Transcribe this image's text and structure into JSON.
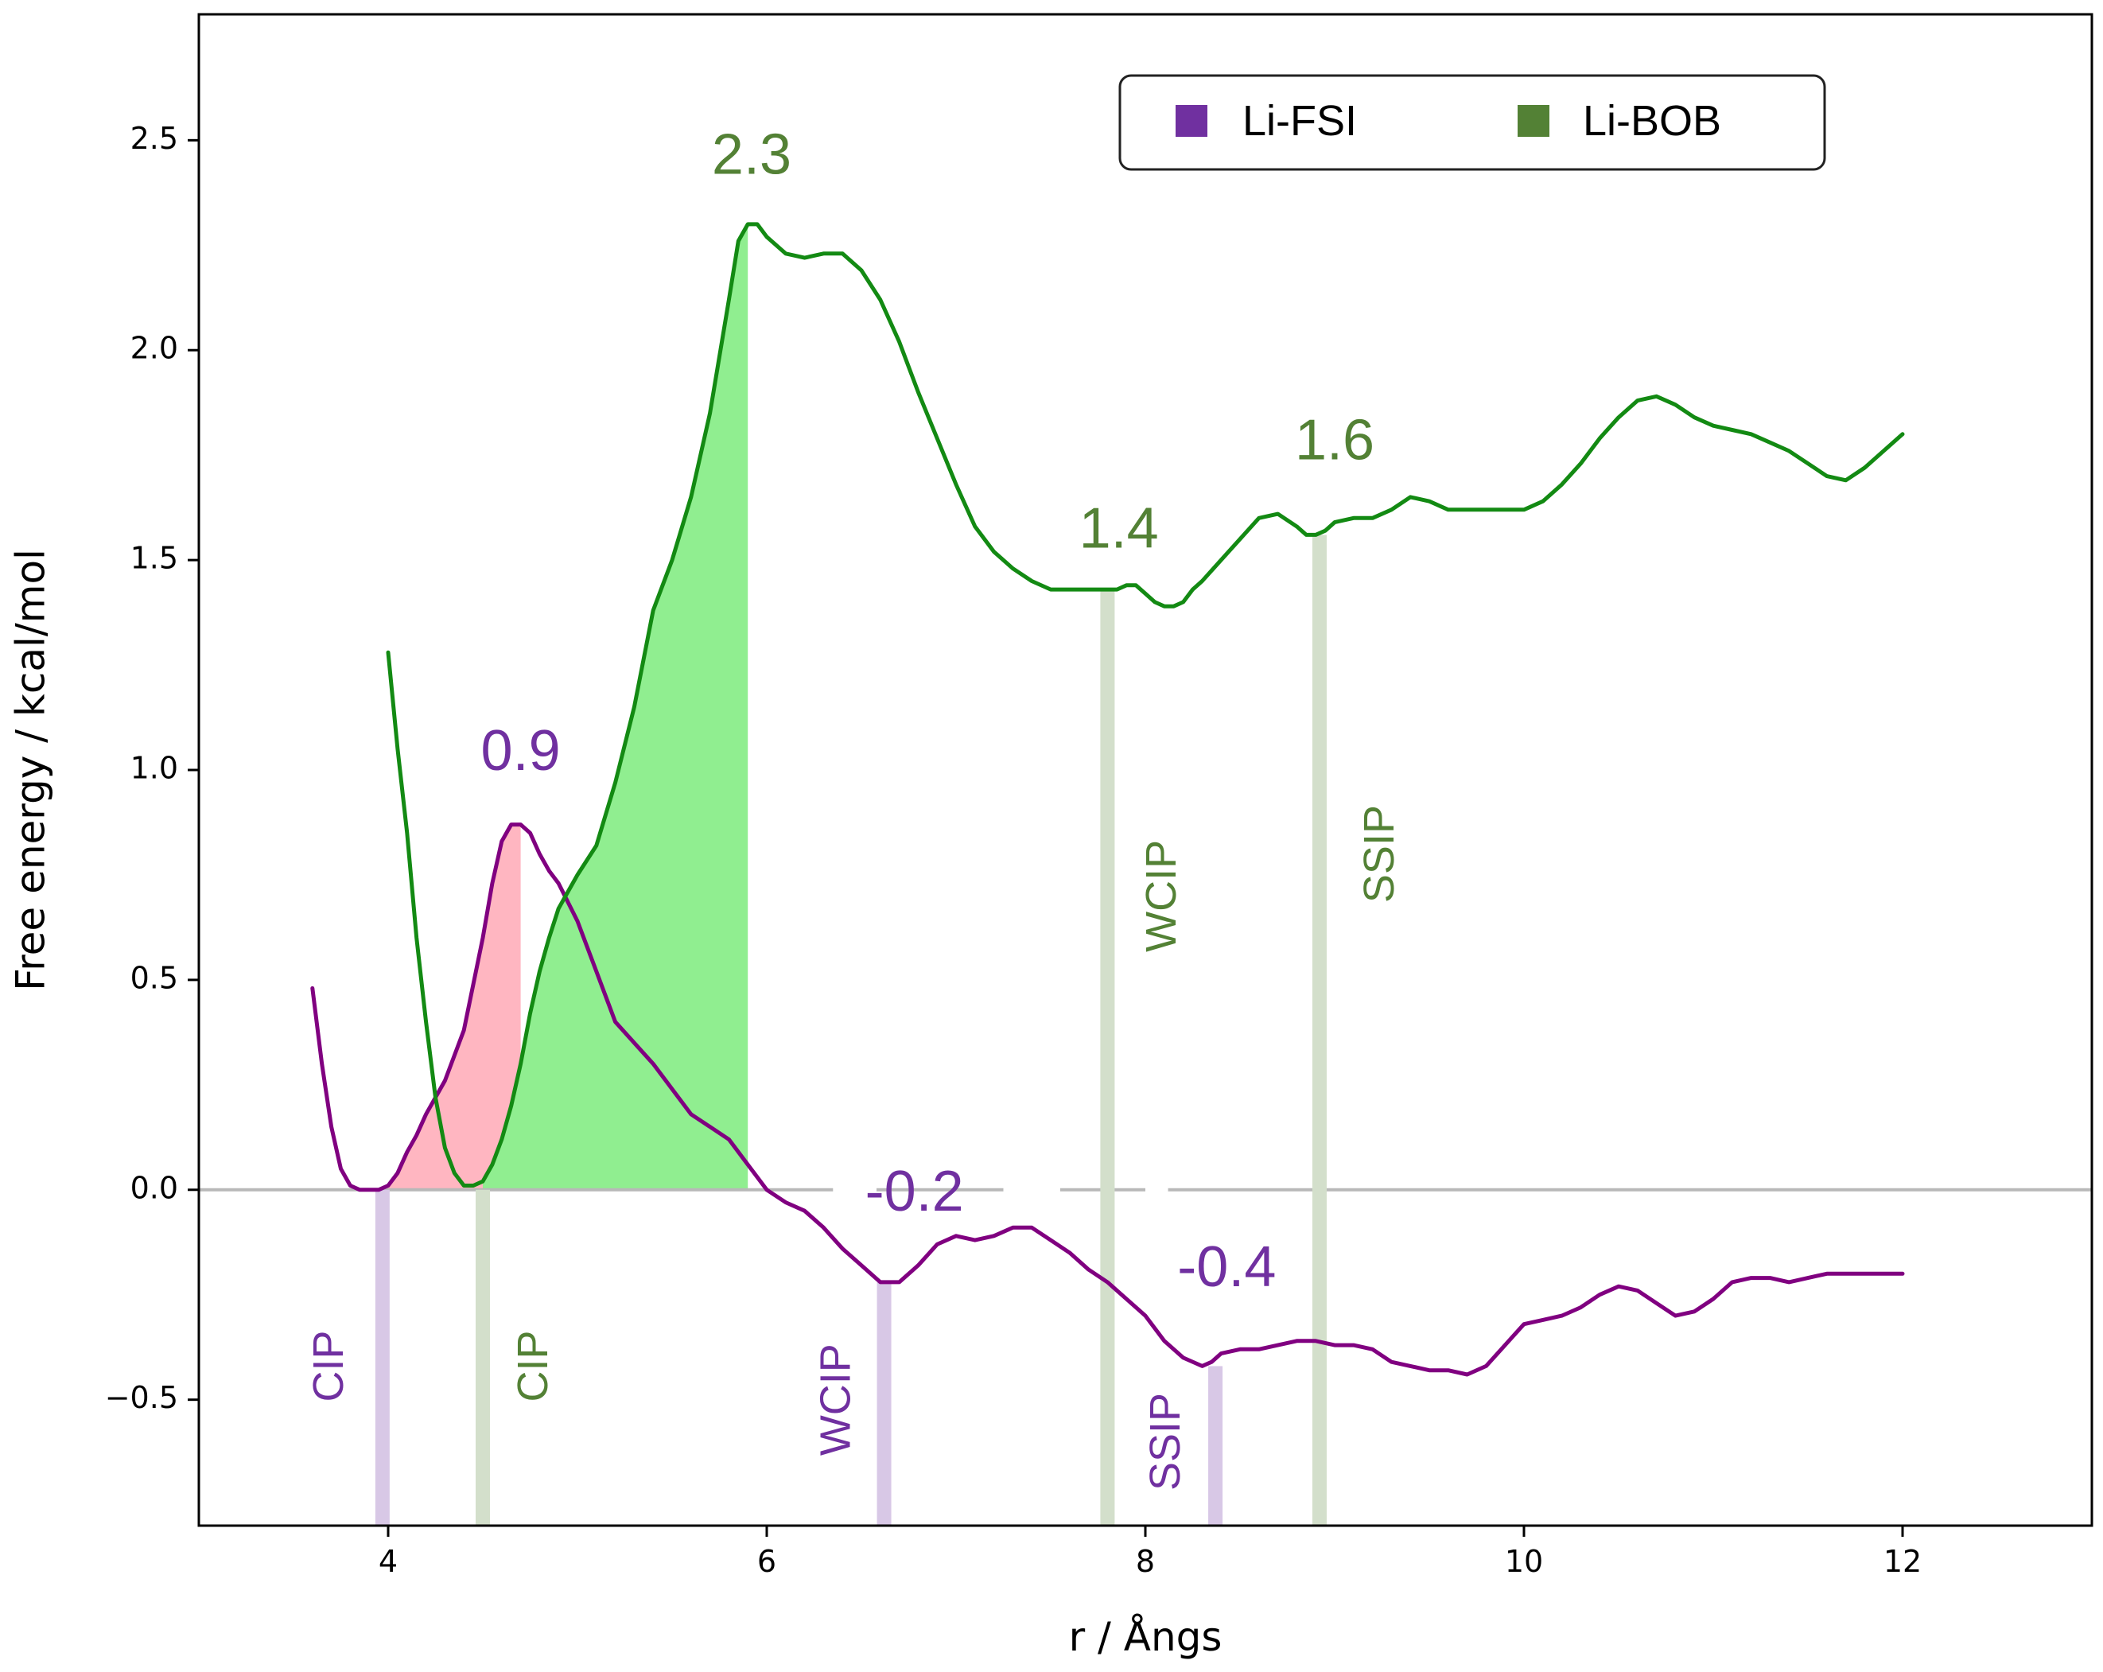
{
  "chart_data": {
    "type": "line",
    "xlabel": "r / Ångs",
    "ylabel": "Free energy / kcal/mol",
    "xlim": [
      3.0,
      13.0
    ],
    "ylim": [
      -0.8,
      2.8
    ],
    "x_ticks": [
      "4",
      "6",
      "8",
      "10",
      "12"
    ],
    "y_ticks": [
      "−0.5",
      "0.0",
      "0.5",
      "1.0",
      "1.5",
      "2.0",
      "2.5"
    ],
    "grid": false,
    "legend": "top-right",
    "colors": {
      "Li-FSI": "#800080",
      "Li-BOB": "#138a13",
      "fsi_label": "#7030a0",
      "bob_label": "#538135",
      "fsi_fill": "#ffb6c1",
      "bob_fill": "#90ee90",
      "fsi_marker": "#d8c8e6",
      "bob_marker": "#d3dfcb",
      "zero_line": "#b8b8b8"
    },
    "series": [
      {
        "name": "Li-FSI",
        "x": [
          3.6,
          3.65,
          3.7,
          3.75,
          3.8,
          3.85,
          3.9,
          3.95,
          4.0,
          4.05,
          4.1,
          4.15,
          4.2,
          4.3,
          4.4,
          4.5,
          4.55,
          4.6,
          4.65,
          4.7,
          4.75,
          4.8,
          4.85,
          4.9,
          5.0,
          5.1,
          5.2,
          5.3,
          5.4,
          5.5,
          5.6,
          5.7,
          5.8,
          5.9,
          6.0,
          6.1,
          6.2,
          6.3,
          6.4,
          6.5,
          6.6,
          6.7,
          6.8,
          6.9,
          7.0,
          7.1,
          7.2,
          7.3,
          7.4,
          7.5,
          7.6,
          7.7,
          7.8,
          7.9,
          8.0,
          8.1,
          8.2,
          8.3,
          8.35,
          8.4,
          8.5,
          8.6,
          8.7,
          8.8,
          8.9,
          9.0,
          9.1,
          9.2,
          9.3,
          9.4,
          9.5,
          9.6,
          9.7,
          9.8,
          9.9,
          10.0,
          10.1,
          10.2,
          10.3,
          10.4,
          10.5,
          10.6,
          10.7,
          10.8,
          10.9,
          11.0,
          11.1,
          11.2,
          11.3,
          11.4,
          11.5,
          11.6,
          11.7,
          11.8,
          11.9,
          12.0
        ],
        "y": [
          0.48,
          0.3,
          0.15,
          0.05,
          0.01,
          0.0,
          0.0,
          0.0,
          0.01,
          0.04,
          0.09,
          0.13,
          0.18,
          0.26,
          0.38,
          0.6,
          0.73,
          0.83,
          0.87,
          0.87,
          0.85,
          0.8,
          0.76,
          0.73,
          0.64,
          0.52,
          0.4,
          0.35,
          0.3,
          0.24,
          0.18,
          0.15,
          0.12,
          0.06,
          0.0,
          -0.03,
          -0.05,
          -0.09,
          -0.14,
          -0.18,
          -0.22,
          -0.22,
          -0.18,
          -0.13,
          -0.11,
          -0.12,
          -0.11,
          -0.09,
          -0.09,
          -0.12,
          -0.15,
          -0.19,
          -0.22,
          -0.26,
          -0.3,
          -0.36,
          -0.4,
          -0.42,
          -0.41,
          -0.39,
          -0.38,
          -0.38,
          -0.37,
          -0.36,
          -0.36,
          -0.37,
          -0.37,
          -0.38,
          -0.41,
          -0.42,
          -0.43,
          -0.43,
          -0.44,
          -0.42,
          -0.37,
          -0.32,
          -0.31,
          -0.3,
          -0.28,
          -0.25,
          -0.23,
          -0.24,
          -0.27,
          -0.3,
          -0.29,
          -0.26,
          -0.22,
          -0.21,
          -0.21,
          -0.22,
          -0.21,
          -0.2,
          -0.2,
          -0.2,
          -0.2,
          -0.2
        ]
      },
      {
        "name": "Li-BOB",
        "x": [
          4.0,
          4.05,
          4.1,
          4.15,
          4.2,
          4.25,
          4.3,
          4.35,
          4.4,
          4.45,
          4.5,
          4.55,
          4.6,
          4.65,
          4.7,
          4.75,
          4.8,
          4.85,
          4.9,
          5.0,
          5.1,
          5.2,
          5.3,
          5.4,
          5.5,
          5.6,
          5.7,
          5.8,
          5.85,
          5.9,
          5.95,
          6.0,
          6.1,
          6.2,
          6.3,
          6.4,
          6.5,
          6.6,
          6.7,
          6.8,
          6.9,
          7.0,
          7.1,
          7.2,
          7.3,
          7.4,
          7.5,
          7.6,
          7.7,
          7.75,
          7.8,
          7.85,
          7.9,
          7.95,
          8.0,
          8.05,
          8.1,
          8.15,
          8.2,
          8.25,
          8.3,
          8.4,
          8.5,
          8.6,
          8.7,
          8.8,
          8.85,
          8.9,
          8.95,
          9.0,
          9.1,
          9.2,
          9.3,
          9.4,
          9.5,
          9.6,
          9.7,
          9.8,
          9.9,
          10.0,
          10.1,
          10.2,
          10.3,
          10.4,
          10.5,
          10.6,
          10.7,
          10.8,
          10.9,
          11.0,
          11.1,
          11.2,
          11.3,
          11.4,
          11.5,
          11.6,
          11.7,
          11.8,
          11.9,
          12.0
        ],
        "y": [
          1.28,
          1.05,
          0.85,
          0.6,
          0.4,
          0.22,
          0.1,
          0.04,
          0.01,
          0.01,
          0.02,
          0.06,
          0.12,
          0.2,
          0.3,
          0.42,
          0.52,
          0.6,
          0.67,
          0.75,
          0.82,
          0.97,
          1.15,
          1.38,
          1.5,
          1.65,
          1.85,
          2.12,
          2.26,
          2.3,
          2.3,
          2.27,
          2.23,
          2.22,
          2.23,
          2.23,
          2.19,
          2.12,
          2.02,
          1.9,
          1.79,
          1.68,
          1.58,
          1.52,
          1.48,
          1.45,
          1.43,
          1.43,
          1.43,
          1.43,
          1.43,
          1.43,
          1.44,
          1.44,
          1.42,
          1.4,
          1.39,
          1.39,
          1.4,
          1.43,
          1.45,
          1.5,
          1.55,
          1.6,
          1.61,
          1.58,
          1.56,
          1.56,
          1.57,
          1.59,
          1.6,
          1.6,
          1.62,
          1.65,
          1.64,
          1.62,
          1.62,
          1.62,
          1.62,
          1.62,
          1.64,
          1.68,
          1.73,
          1.79,
          1.84,
          1.88,
          1.89,
          1.87,
          1.84,
          1.82,
          1.81,
          1.8,
          1.78,
          1.76,
          1.73,
          1.7,
          1.69,
          1.72,
          1.76,
          1.8
        ]
      }
    ],
    "shaded_regions": [
      {
        "series": "Li-FSI",
        "x_from": 3.95,
        "x_to": 4.72,
        "color": "#ffb6c1"
      },
      {
        "series": "Li-BOB",
        "x_from": 4.5,
        "x_to": 5.93,
        "color": "#90ee90"
      }
    ],
    "value_annotations": [
      {
        "text": "0.9",
        "x": 4.7,
        "y": 1.0,
        "series": "Li-FSI"
      },
      {
        "text": "2.3",
        "x": 5.92,
        "y": 2.42,
        "series": "Li-BOB"
      },
      {
        "text": "-0.2",
        "x": 6.78,
        "y": -0.05,
        "series": "Li-FSI"
      },
      {
        "text": "1.4",
        "x": 7.86,
        "y": 1.53,
        "series": "Li-BOB"
      },
      {
        "text": "1.6",
        "x": 9.0,
        "y": 1.74,
        "series": "Li-FSI"
      },
      {
        "text": "-0.4",
        "x": 8.43,
        "y": -0.23,
        "series": "Li-FSI"
      }
    ],
    "value_annotations_note": "",
    "region_markers": [
      {
        "label": "CIP",
        "x": 3.97,
        "series": "Li-FSI",
        "y_from": -0.8,
        "y_to": 0.0,
        "label_x": 3.7,
        "label_y": -0.42
      },
      {
        "label": "CIP",
        "x": 4.5,
        "series": "Li-BOB",
        "y_from": -0.8,
        "y_to": 0.0,
        "label_x": 4.78,
        "label_y": -0.42
      },
      {
        "label": "WCIP",
        "x": 6.62,
        "series": "Li-FSI",
        "y_from": -0.8,
        "y_to": -0.22,
        "label_x": 6.38,
        "label_y": -0.5
      },
      {
        "label": "SSIP",
        "x": 8.37,
        "series": "Li-FSI",
        "y_from": -0.8,
        "y_to": -0.42,
        "label_x": 8.12,
        "label_y": -0.6
      },
      {
        "label": "WCIP",
        "x": 7.8,
        "series": "Li-BOB",
        "y_from": -0.8,
        "y_to": 1.43,
        "label_x": 8.1,
        "label_y": 0.7
      },
      {
        "label": "SSIP",
        "x": 8.92,
        "series": "Li-BOB",
        "y_from": -0.8,
        "y_to": 1.56,
        "label_x": 9.25,
        "label_y": 0.8
      }
    ],
    "zero_line_gaps": [
      [
        6.35,
        6.58
      ],
      [
        7.25,
        7.55
      ],
      [
        8.0,
        8.12
      ]
    ]
  }
}
